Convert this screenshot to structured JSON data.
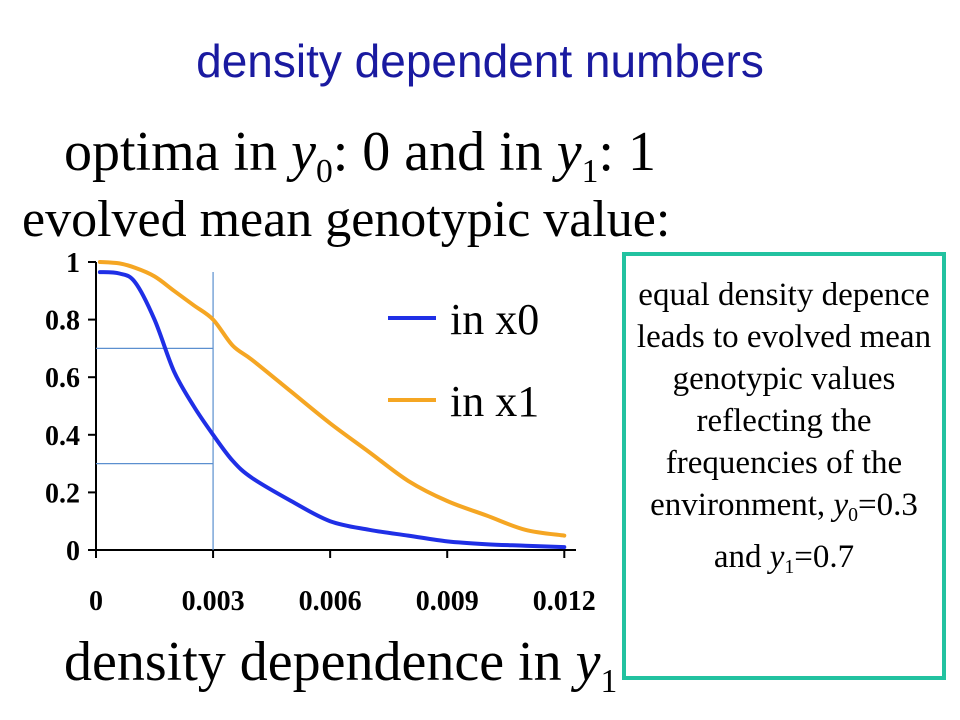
{
  "slide": {
    "title": "density dependent numbers",
    "optima_line": {
      "prefix": "optima in ",
      "var0": "y",
      "sub0": "0",
      "mid": ": 0 and in ",
      "var1": "y",
      "sub1": "1",
      "suffix": ": 1"
    },
    "evolved_line": "evolved mean genotypic value:",
    "x_title": {
      "prefix": "density dependence in ",
      "var": "y",
      "sub": "1"
    },
    "note": {
      "text": "equal density depence leads to evolved mean genotypic values reflecting the frequencies of the environment,",
      "var0": "y",
      "sub0": "0",
      "eq0": "=0.3 and ",
      "var1": "y",
      "sub1": "1",
      "eq1": "=0.7"
    }
  },
  "colors": {
    "title": "#1a1aa0",
    "series_x0": "#1f2fe6",
    "series_x1": "#f5a623",
    "guide_lines": "#5b8fcf",
    "note_border": "#22c2a0"
  },
  "chart_data": {
    "type": "line",
    "x_ticks": [
      "0",
      "0.003",
      "0.006",
      "0.009",
      "0.012"
    ],
    "y_ticks": [
      "0",
      "0.2",
      "0.4",
      "0.6",
      "0.8",
      "1"
    ],
    "xlim": [
      0,
      0.0123
    ],
    "ylim": [
      0,
      1
    ],
    "grid": false,
    "legend_position": "top-right",
    "series": [
      {
        "name": "in x0",
        "x": [
          0.0001,
          0.0006,
          0.001,
          0.0015,
          0.002,
          0.0025,
          0.003,
          0.0035,
          0.004,
          0.005,
          0.006,
          0.007,
          0.008,
          0.009,
          0.01,
          0.011,
          0.012
        ],
        "y": [
          0.965,
          0.96,
          0.93,
          0.8,
          0.62,
          0.5,
          0.4,
          0.31,
          0.25,
          0.17,
          0.1,
          0.07,
          0.05,
          0.03,
          0.02,
          0.015,
          0.01
        ]
      },
      {
        "name": "in x1",
        "x": [
          0.0001,
          0.0006,
          0.001,
          0.0015,
          0.002,
          0.0025,
          0.003,
          0.0035,
          0.004,
          0.005,
          0.006,
          0.007,
          0.008,
          0.009,
          0.01,
          0.011,
          0.012
        ],
        "y": [
          1.0,
          0.995,
          0.98,
          0.95,
          0.9,
          0.85,
          0.8,
          0.71,
          0.66,
          0.55,
          0.44,
          0.34,
          0.24,
          0.17,
          0.12,
          0.07,
          0.05
        ]
      }
    ],
    "guide_lines": {
      "x": 0.003,
      "y": [
        0.3,
        0.7
      ]
    }
  }
}
